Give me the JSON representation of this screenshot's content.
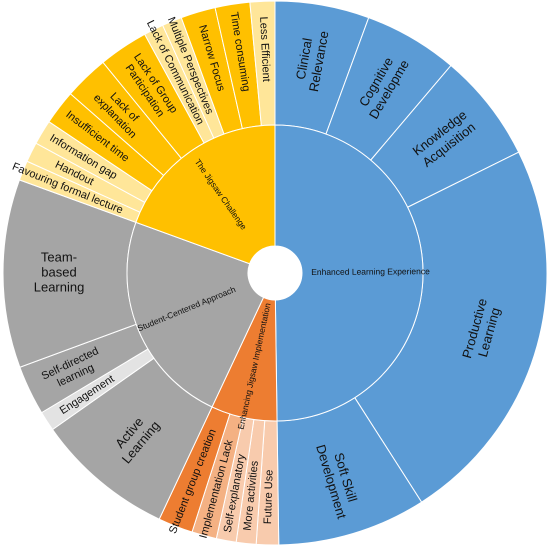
{
  "chart_data": {
    "type": "sunburst",
    "title": "",
    "rings": 2,
    "start_angle_deg": 0,
    "direction": "clockwise",
    "inner": [
      {
        "label": "Enhanced Learning Experience",
        "color": "#5b9bd5",
        "children": [
          {
            "label": "Clinical Relevance",
            "lines": [
              "Clinical",
              "Relevance"
            ],
            "value": 19,
            "color": "#5b9bd5",
            "size": "lg"
          },
          {
            "label": "Cognitive Developme",
            "lines": [
              "Cognitive",
              "Developme"
            ],
            "value": 19,
            "color": "#5b9bd5",
            "size": "lg"
          },
          {
            "label": "Knowledge Acquisition",
            "lines": [
              "Knowledge",
              "Acquisition"
            ],
            "value": 22,
            "color": "#5b9bd5",
            "size": "lg"
          },
          {
            "label": "Productive Learning",
            "lines": [
              "Productive",
              "Learning"
            ],
            "value": 79,
            "color": "#5b9bd5",
            "size": "lg"
          },
          {
            "label": "Soft Skill Development",
            "lines": [
              "Soft Skill",
              "Development"
            ],
            "value": 30,
            "color": "#5b9bd5",
            "size": "lg"
          }
        ]
      },
      {
        "label": "Enhancing Jigsaw Implementation",
        "color": "#ed7d31",
        "children": [
          {
            "label": "Future Use",
            "lines": [
              "Future Use"
            ],
            "value": 4.5,
            "color": "#f8cbad",
            "size": "sm"
          },
          {
            "label": "More activities",
            "lines": [
              "More activities"
            ],
            "value": 4,
            "color": "#f8cbad",
            "size": "sm"
          },
          {
            "label": "Self-explanatory",
            "lines": [
              "Self-explanatory"
            ],
            "value": 4,
            "color": "#f8cbad",
            "size": "sm"
          },
          {
            "label": "Implementation Lack",
            "lines": [
              "Implementation Lack"
            ],
            "value": 5,
            "color": "#f4b183",
            "size": "sm"
          },
          {
            "label": "Student group creation",
            "lines": [
              "Student group creation"
            ],
            "value": 7,
            "color": "#ed7d31",
            "size": "sm"
          }
        ]
      },
      {
        "label": "Student-Centered Approach",
        "color": "#a5a5a5",
        "children": [
          {
            "label": "Active Learning",
            "lines": [
              "Active",
              "Learning"
            ],
            "value": 28,
            "color": "#a5a5a5",
            "size": "lg"
          },
          {
            "label": "Engagement",
            "lines": [
              "Engagement"
            ],
            "value": 4,
            "color": "#e3e3e3",
            "size": "sm"
          },
          {
            "label": "Self-directed learning",
            "lines": [
              "Self-directed",
              "learning"
            ],
            "value": 10,
            "color": "#a5a5a5",
            "size": "sm"
          },
          {
            "label": "Team-based Learning",
            "lines": [
              "Team-",
              "based",
              "Learning"
            ],
            "value": 38,
            "color": "#a5a5a5",
            "size": "lg"
          }
        ]
      },
      {
        "label": "The Jigsaw Challenge",
        "color": "#ffc000",
        "children": [
          {
            "label": "Favouring formal lecture",
            "lines": [
              "Favouring formal lecture"
            ],
            "value": 4,
            "color": "#ffe699",
            "size": "sm"
          },
          {
            "label": "Handout",
            "lines": [
              "Handout"
            ],
            "value": 4,
            "color": "#ffe699",
            "size": "sm"
          },
          {
            "label": "Information gap",
            "lines": [
              "Information gap"
            ],
            "value": 5,
            "color": "#ffe699",
            "size": "sm"
          },
          {
            "label": "Insufficient time",
            "lines": [
              "Insufficient time"
            ],
            "value": 7,
            "color": "#ffc000",
            "size": "sm"
          },
          {
            "label": "Lack of explanation",
            "lines": [
              "Lack of",
              "explanation"
            ],
            "value": 9,
            "color": "#ffc000",
            "size": "sm"
          },
          {
            "label": "Lack of Group Participation",
            "lines": [
              "Lack of Group",
              "Participation"
            ],
            "value": 10,
            "color": "#ffc000",
            "size": "sm"
          },
          {
            "label": "Lack of Communication",
            "lines": [
              "Lack of Communication"
            ],
            "value": 4,
            "color": "#ffe699",
            "size": "sm"
          },
          {
            "label": "Multiple Perspectives",
            "lines": [
              "Multiple Perspectives"
            ],
            "value": 4,
            "color": "#ffe699",
            "size": "sm"
          },
          {
            "label": "Narrow Focus",
            "lines": [
              "Narrow Focus"
            ],
            "value": 7,
            "color": "#ffc000",
            "size": "sm"
          },
          {
            "label": "Time consuming",
            "lines": [
              "Time consuming"
            ],
            "value": 7,
            "color": "#ffc000",
            "size": "sm"
          },
          {
            "label": "Less Efficient",
            "lines": [
              "Less Efficient"
            ],
            "value": 5,
            "color": "#ffe699",
            "size": "sm"
          }
        ]
      }
    ]
  }
}
